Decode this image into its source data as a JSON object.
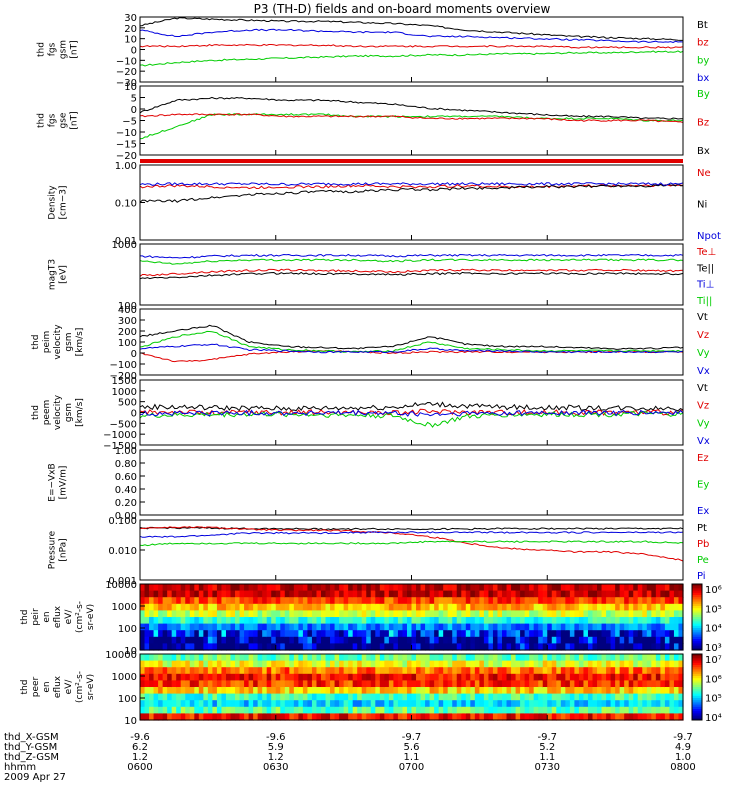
{
  "title": "P3 (TH-D) fields and on-board moments overview",
  "colors": {
    "black": "#000000",
    "red": "#e00000",
    "green": "#00cc00",
    "blue": "#0000dd"
  },
  "xaxis": {
    "hhmm": [
      "0600",
      "0630",
      "0700",
      "0730",
      "0800"
    ],
    "rows": [
      {
        "label": "thd_X-GSM",
        "values": [
          "-9.6",
          "-9.6",
          "-9.7",
          "-9.7",
          "-9.7"
        ]
      },
      {
        "label": "thd_Y-GSM",
        "values": [
          "6.2",
          "5.9",
          "5.6",
          "5.2",
          "4.9"
        ]
      },
      {
        "label": "thd_Z-GSM",
        "values": [
          "1.2",
          "1.2",
          "1.1",
          "1.1",
          "1.0"
        ]
      },
      {
        "label": "hhmm",
        "values": [
          "0600",
          "0630",
          "0700",
          "0730",
          "0800"
        ]
      }
    ],
    "date": "2009 Apr 27"
  },
  "chart_data": [
    {
      "type": "line",
      "panel": "fgs_gsm",
      "ylabel": [
        "thd",
        "fgs",
        "gsm",
        "[nT]"
      ],
      "yticks": [
        "30",
        "20",
        "10",
        "0",
        "−10",
        "−20",
        "−30"
      ],
      "ylim": [
        -30,
        30
      ],
      "series": [
        {
          "name": "Bt",
          "color": "#000000",
          "values": [
            22,
            29,
            28,
            27,
            26,
            26,
            25,
            24,
            22,
            18,
            16,
            14,
            12,
            11,
            10,
            9
          ]
        },
        {
          "name": "bz",
          "color": "#e00000",
          "values": [
            3,
            3,
            4,
            4,
            4,
            4,
            3,
            3,
            3,
            3,
            3,
            3,
            2,
            2,
            2,
            2
          ]
        },
        {
          "name": "by",
          "color": "#00cc00",
          "values": [
            -15,
            -12,
            -10,
            -9,
            -8,
            -7,
            -6,
            -6,
            -5,
            -5,
            -4,
            -4,
            -3,
            -3,
            -2,
            -2
          ]
        },
        {
          "name": "bx",
          "color": "#0000dd",
          "values": [
            18,
            12,
            16,
            18,
            18,
            17,
            16,
            16,
            12,
            12,
            11,
            10,
            9,
            8,
            7,
            7
          ]
        }
      ]
    },
    {
      "type": "line",
      "panel": "fgs_gse",
      "ylabel": [
        "thd",
        "fgs",
        "gse",
        "[nT]"
      ],
      "yticks": [
        "10",
        "5",
        "0",
        "−5",
        "−10",
        "−15",
        "−20"
      ],
      "ylim": [
        -22,
        12
      ],
      "series": [
        {
          "name": "By",
          "color": "#00cc00",
          "values": [
            -14,
            -8,
            -2,
            -2,
            -2,
            -2,
            -3,
            -3,
            -3,
            -3,
            -3,
            -4,
            -4,
            -4,
            -5,
            -5
          ]
        },
        {
          "name": "Bz",
          "color": "#e00000",
          "values": [
            -3,
            -2,
            -2,
            -2,
            -3,
            -3,
            -3,
            -3,
            -4,
            -4,
            -4,
            -4,
            -5,
            -5,
            -5,
            -6
          ]
        },
        {
          "name": "Bx",
          "color": "#000000",
          "values": [
            -1,
            5,
            6,
            6,
            5,
            5,
            4,
            3,
            1,
            0,
            -1,
            -2,
            -3,
            -3,
            -4,
            -4
          ]
        }
      ]
    },
    {
      "type": "line",
      "panel": "density",
      "ylabel": [
        "Density",
        "[cm−3]"
      ],
      "yticks": [
        "1.00",
        "0.10",
        "0.01"
      ],
      "ylim": [
        0.01,
        1.2
      ],
      "log": true,
      "series": [
        {
          "name": "Ne",
          "color": "#e00000",
          "values": [
            0.3,
            0.32,
            0.3,
            0.28,
            0.3,
            0.3,
            0.32,
            0.3,
            0.3,
            0.32,
            0.3,
            0.3,
            0.32,
            0.32,
            0.33,
            0.33
          ]
        },
        {
          "name": "Ni",
          "color": "#000000",
          "values": [
            0.12,
            0.12,
            0.15,
            0.18,
            0.2,
            0.22,
            0.22,
            0.25,
            0.25,
            0.27,
            0.28,
            0.3,
            0.3,
            0.32,
            0.32,
            0.34
          ]
        },
        {
          "name": "Npot",
          "color": "#0000dd",
          "values": [
            0.35,
            0.36,
            0.36,
            0.36,
            0.35,
            0.36,
            0.36,
            0.36,
            0.36,
            0.36,
            0.36,
            0.36,
            0.36,
            0.36,
            0.36,
            0.36
          ]
        }
      ]
    },
    {
      "type": "line",
      "panel": "temperature",
      "ylabel": [
        "magT3",
        "[eV]"
      ],
      "yticks": [
        "1000",
        "100"
      ],
      "ylim": [
        100,
        20000
      ],
      "log": true,
      "series": [
        {
          "name": "Te⊥",
          "color": "#e00000",
          "values": [
            1300,
            1500,
            1800,
            2000,
            2100,
            2000,
            1900,
            1800,
            2000,
            2100,
            2000,
            2100,
            2000,
            2100,
            2000,
            1900
          ]
        },
        {
          "name": "Te||",
          "color": "#000000",
          "values": [
            1000,
            1100,
            1300,
            1500,
            1600,
            1500,
            1500,
            1400,
            1500,
            1600,
            1500,
            1600,
            1500,
            1600,
            1500,
            1500
          ]
        },
        {
          "name": "Ti⊥",
          "color": "#0000dd",
          "values": [
            7000,
            6000,
            7000,
            7500,
            7500,
            7500,
            7500,
            7000,
            7500,
            7500,
            7500,
            7500,
            7500,
            7500,
            7500,
            7500
          ]
        },
        {
          "name": "Ti||",
          "color": "#00cc00",
          "values": [
            4500,
            3500,
            4500,
            5000,
            5000,
            5000,
            5000,
            4500,
            5000,
            5000,
            5000,
            5000,
            5000,
            5000,
            5000,
            5000
          ]
        }
      ]
    },
    {
      "type": "line",
      "panel": "peim_velocity",
      "ylabel": [
        "thd",
        "peim",
        "velocity",
        "gsm",
        "[km/s]"
      ],
      "yticks": [
        "400",
        "300",
        "200",
        "100",
        "0",
        "−100",
        "−200"
      ],
      "ylim": [
        -200,
        400
      ],
      "series": [
        {
          "name": "Vt",
          "color": "#000000",
          "values": [
            150,
            200,
            250,
            100,
            60,
            50,
            40,
            60,
            150,
            80,
            60,
            60,
            50,
            40,
            40,
            50
          ]
        },
        {
          "name": "Vz",
          "color": "#e00000",
          "values": [
            0,
            -80,
            -60,
            -10,
            10,
            20,
            10,
            0,
            10,
            10,
            10,
            10,
            10,
            10,
            10,
            10
          ]
        },
        {
          "name": "Vy",
          "color": "#00cc00",
          "values": [
            50,
            150,
            200,
            60,
            30,
            20,
            10,
            20,
            100,
            40,
            30,
            20,
            20,
            20,
            20,
            20
          ]
        },
        {
          "name": "Vx",
          "color": "#0000dd",
          "values": [
            40,
            60,
            80,
            30,
            20,
            10,
            10,
            10,
            40,
            20,
            20,
            10,
            10,
            10,
            10,
            10
          ]
        }
      ]
    },
    {
      "type": "line",
      "panel": "peem_velocity",
      "ylabel": [
        "thd",
        "peem",
        "velocity",
        "gsm",
        "[km/s]"
      ],
      "yticks": [
        "1500",
        "1000",
        "500",
        "0",
        "−500",
        "−1000",
        "−1500"
      ],
      "ylim": [
        -1500,
        1500
      ],
      "series": [
        {
          "name": "Vt",
          "color": "#000000",
          "values": [
            250,
            260,
            220,
            200,
            180,
            200,
            220,
            250,
            400,
            300,
            250,
            230,
            220,
            210,
            200,
            200
          ]
        },
        {
          "name": "Vz",
          "color": "#e00000",
          "values": [
            0,
            40,
            -30,
            20,
            0,
            10,
            0,
            -20,
            50,
            20,
            10,
            0,
            10,
            0,
            10,
            0
          ]
        },
        {
          "name": "Vy",
          "color": "#00cc00",
          "values": [
            -150,
            -120,
            -100,
            -80,
            -80,
            -100,
            -120,
            -150,
            -600,
            -200,
            -100,
            -90,
            -80,
            -80,
            -70,
            -70
          ]
        },
        {
          "name": "Vx",
          "color": "#0000dd",
          "values": [
            -50,
            -40,
            -30,
            -20,
            -20,
            -30,
            -30,
            -40,
            -100,
            -50,
            -30,
            -20,
            -20,
            -20,
            -20,
            -20
          ]
        }
      ]
    },
    {
      "type": "line",
      "panel": "efield",
      "ylabel": [
        "E=−VxB",
        "[mV/m]"
      ],
      "yticks": [
        "1.00",
        "0.80",
        "0.60",
        "0.40",
        "0.20",
        "0.00"
      ],
      "ylim": [
        0,
        1
      ],
      "series": [
        {
          "name": "Ez",
          "color": "#e00000",
          "values": []
        },
        {
          "name": "Ey",
          "color": "#00cc00",
          "values": []
        },
        {
          "name": "Ex",
          "color": "#0000dd",
          "values": []
        }
      ]
    },
    {
      "type": "line",
      "panel": "pressure",
      "ylabel": [
        "Pressure",
        "[nPa]"
      ],
      "yticks": [
        "0.100",
        "0.010",
        "0.001"
      ],
      "ylim": [
        0.001,
        0.6
      ],
      "log": true,
      "series": [
        {
          "name": "Pt",
          "color": "#000000",
          "values": [
            0.25,
            0.26,
            0.25,
            0.24,
            0.24,
            0.23,
            0.23,
            0.23,
            0.23,
            0.23,
            0.24,
            0.24,
            0.24,
            0.24,
            0.24,
            0.24
          ]
        },
        {
          "name": "Pb",
          "color": "#e00000",
          "values": [
            0.25,
            0.28,
            0.27,
            0.22,
            0.2,
            0.2,
            0.18,
            0.15,
            0.1,
            0.05,
            0.03,
            0.025,
            0.02,
            0.02,
            0.015,
            0.008
          ]
        },
        {
          "name": "Pe",
          "color": "#00cc00",
          "values": [
            0.04,
            0.05,
            0.05,
            0.05,
            0.05,
            0.05,
            0.05,
            0.05,
            0.06,
            0.06,
            0.06,
            0.06,
            0.06,
            0.06,
            0.06,
            0.05
          ]
        },
        {
          "name": "Pi",
          "color": "#0000dd",
          "values": [
            0.1,
            0.1,
            0.12,
            0.15,
            0.15,
            0.15,
            0.16,
            0.16,
            0.16,
            0.16,
            0.16,
            0.16,
            0.16,
            0.16,
            0.16,
            0.16
          ]
        }
      ]
    },
    {
      "type": "heatmap",
      "panel": "peir_spectrogram",
      "ylabel": [
        "thd",
        "peir",
        "en",
        "eflux",
        "eV/",
        "(cm²-s-",
        "sr-eV)"
      ],
      "yticks": [
        "10000",
        "1000",
        "100",
        "10"
      ],
      "ylim": [
        10,
        20000
      ],
      "log": true,
      "colorbar": {
        "ticks": [
          "10⁶",
          "10⁵",
          "10⁴",
          "10³"
        ]
      },
      "bands": [
        6,
        6,
        5.6,
        5.2,
        4.8,
        4.3,
        3.8,
        3.4,
        3.1,
        2.9
      ]
    },
    {
      "type": "heatmap",
      "panel": "peer_spectrogram",
      "ylabel": [
        "thd",
        "peer",
        "en",
        "eflux",
        "eV/",
        "(cm²-s-",
        "sr-eV)"
      ],
      "yticks": [
        "10000",
        "1000",
        "100",
        "10"
      ],
      "ylim": [
        10,
        20000
      ],
      "log": true,
      "colorbar": {
        "ticks": [
          "10⁷",
          "10⁶",
          "10⁵",
          "10⁴"
        ]
      },
      "bands": [
        5.4,
        5.8,
        6.3,
        6.6,
        6.5,
        6.0,
        5.3,
        5.0,
        5.4,
        6.6
      ]
    }
  ]
}
